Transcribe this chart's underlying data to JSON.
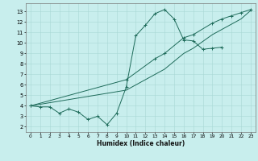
{
  "xlabel": "Humidex (Indice chaleur)",
  "bg_color": "#c8eeed",
  "grid_color": "#a8d8d4",
  "line_color": "#1e6b5a",
  "xlim": [
    -0.5,
    23.5
  ],
  "ylim": [
    1.5,
    13.8
  ],
  "xticks": [
    0,
    1,
    2,
    3,
    4,
    5,
    6,
    7,
    8,
    9,
    10,
    11,
    12,
    13,
    14,
    15,
    16,
    17,
    18,
    19,
    20,
    21,
    22,
    23
  ],
  "yticks": [
    2,
    3,
    4,
    5,
    6,
    7,
    8,
    9,
    10,
    11,
    12,
    13
  ],
  "line1_x": [
    0,
    1,
    2,
    3,
    4,
    5,
    6,
    7,
    8,
    9,
    10,
    11,
    12,
    13,
    14,
    15,
    16,
    17,
    18,
    19,
    20
  ],
  "line1_y": [
    4.0,
    3.9,
    3.9,
    3.3,
    3.7,
    3.4,
    2.7,
    3.0,
    2.2,
    3.3,
    5.8,
    10.7,
    11.7,
    12.8,
    13.2,
    12.3,
    10.3,
    10.2,
    9.4,
    9.5,
    9.6
  ],
  "line2_x": [
    0,
    10,
    13,
    14,
    16,
    17,
    19,
    20,
    21,
    22,
    23
  ],
  "line2_y": [
    4.0,
    6.5,
    8.5,
    9.0,
    10.5,
    10.8,
    11.9,
    12.3,
    12.6,
    12.9,
    13.2
  ],
  "line3_x": [
    0,
    10,
    13,
    14,
    16,
    17,
    19,
    20,
    21,
    22,
    23
  ],
  "line3_y": [
    4.0,
    5.5,
    7.0,
    7.5,
    9.0,
    9.5,
    10.8,
    11.3,
    11.8,
    12.3,
    13.1
  ]
}
